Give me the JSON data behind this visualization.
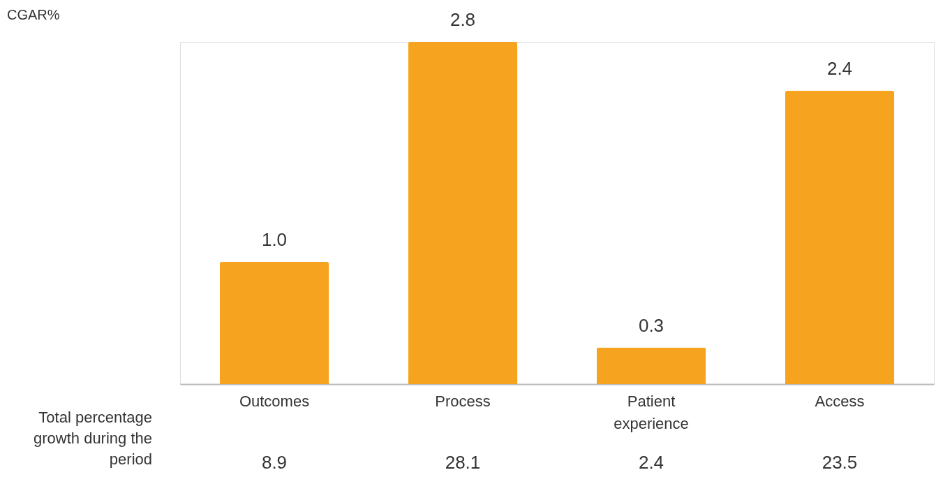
{
  "chart_data": {
    "type": "bar",
    "categories": [
      "Outcomes",
      "Process",
      "Patient experience",
      "Access"
    ],
    "values": [
      1.0,
      2.8,
      0.3,
      2.4
    ],
    "value_labels": [
      "1.0",
      "2.8",
      "0.3",
      "2.4"
    ],
    "color": "#f6a41f",
    "grid": false,
    "annotations": [
      "CGAR%",
      "Total percentage growth during the period",
      "8.9",
      "28.1",
      "2.4",
      "23.5"
    ]
  }
}
